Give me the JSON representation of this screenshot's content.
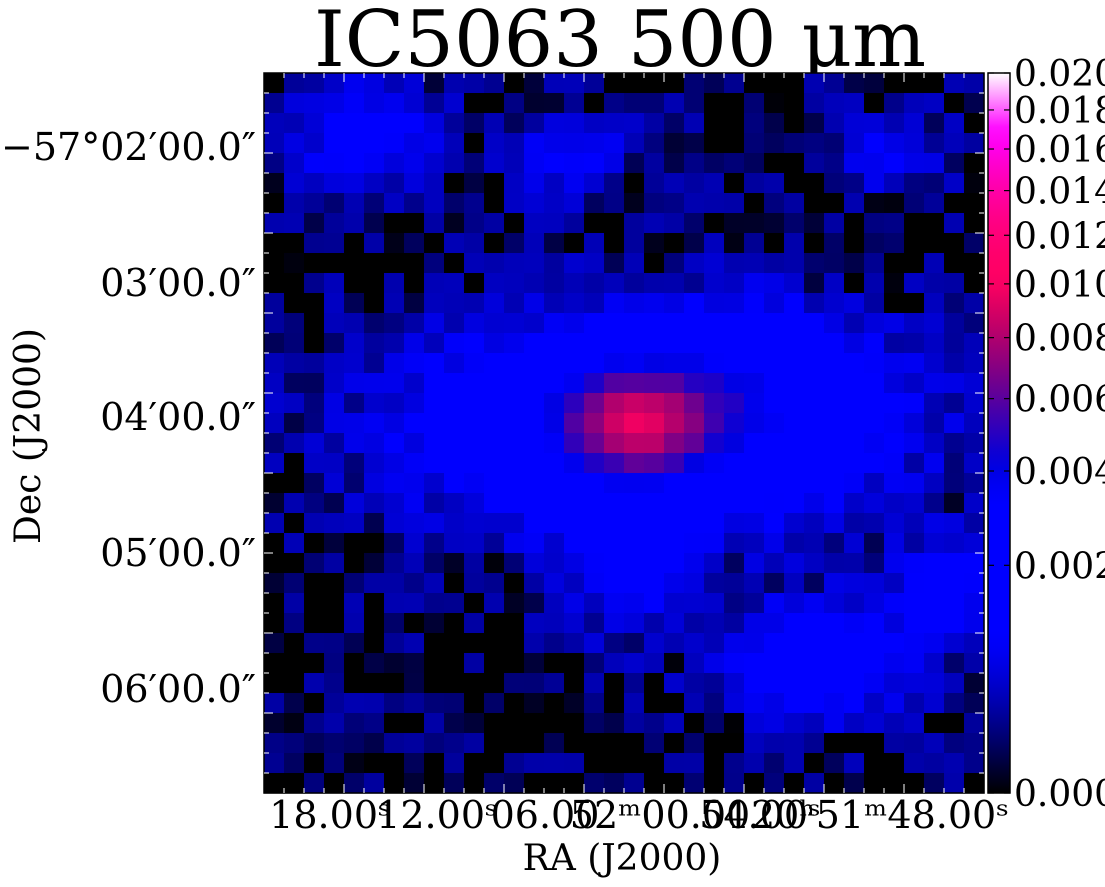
{
  "chart_data": {
    "type": "heatmap",
    "title": "IC5063 500 μm",
    "xlabel": "RA (J2000)",
    "ylabel": "Dec (J2000)",
    "x_ticks": [
      "18.00ˢ",
      "12.00ˢ",
      "06.00",
      "52ᵐ00.00",
      "54.00ˢ",
      "20ʰ51ᵐ48.00ˢ"
    ],
    "y_ticks": [
      "−57°02′00.0″",
      "03′00.0″",
      "04′00.0″",
      "05′00.0″",
      "06′00.0″"
    ],
    "colorbar": {
      "colormap": "gnuplot2",
      "range": [
        0.0,
        0.02
      ],
      "scale": "sqrt",
      "ticks": [
        {
          "value": 0.02,
          "label": "0.020"
        },
        {
          "value": 0.018,
          "label": "0.018"
        },
        {
          "value": 0.016,
          "label": "0.016"
        },
        {
          "value": 0.014,
          "label": "0.014"
        },
        {
          "value": 0.012,
          "label": "0.012"
        },
        {
          "value": 0.01,
          "label": "0.010"
        },
        {
          "value": 0.008,
          "label": "0.008"
        },
        {
          "value": 0.006,
          "label": "0.006"
        },
        {
          "value": 0.004,
          "label": "0.004"
        },
        {
          "value": 0.002,
          "label": "0.002"
        },
        {
          "value": 0.0,
          "label": "0.000"
        }
      ]
    },
    "grid_shape": [
      36,
      36
    ],
    "components": [
      {
        "ra_col": 18.5,
        "dec_row": 17.5,
        "amplitude": 0.0065,
        "sigma_col": 2.6,
        "sigma_row": 1.8
      },
      {
        "ra_col": 19,
        "dec_row": 17.5,
        "amplitude": 0.0024,
        "sigma_col": 8.0,
        "sigma_row": 3.5
      },
      {
        "ra_col": 24,
        "dec_row": 16,
        "amplitude": 0.0018,
        "sigma_col": 3.5,
        "sigma_row": 2.5
      },
      {
        "ra_col": 27.5,
        "dec_row": 29.5,
        "amplitude": 0.0017,
        "sigma_col": 3.0,
        "sigma_row": 2.0
      },
      {
        "ra_col": 5,
        "dec_row": 3,
        "amplitude": 0.0012,
        "sigma_col": 2.5,
        "sigma_row": 2.0
      },
      {
        "ra_col": 15,
        "dec_row": 4,
        "amplitude": 0.001,
        "sigma_col": 2.0,
        "sigma_row": 1.5
      },
      {
        "ra_col": 34,
        "dec_row": 26,
        "amplitude": 0.0011,
        "sigma_col": 2.0,
        "sigma_row": 2.0
      },
      {
        "ra_col": 31,
        "dec_row": 4,
        "amplitude": 0.0008,
        "sigma_col": 2.0,
        "sigma_row": 1.5
      },
      {
        "ra_col": 18,
        "dec_row": 25,
        "amplitude": 0.0009,
        "sigma_col": 2.0,
        "sigma_row": 2.5
      }
    ],
    "noise_amplitude": 0.0006
  }
}
